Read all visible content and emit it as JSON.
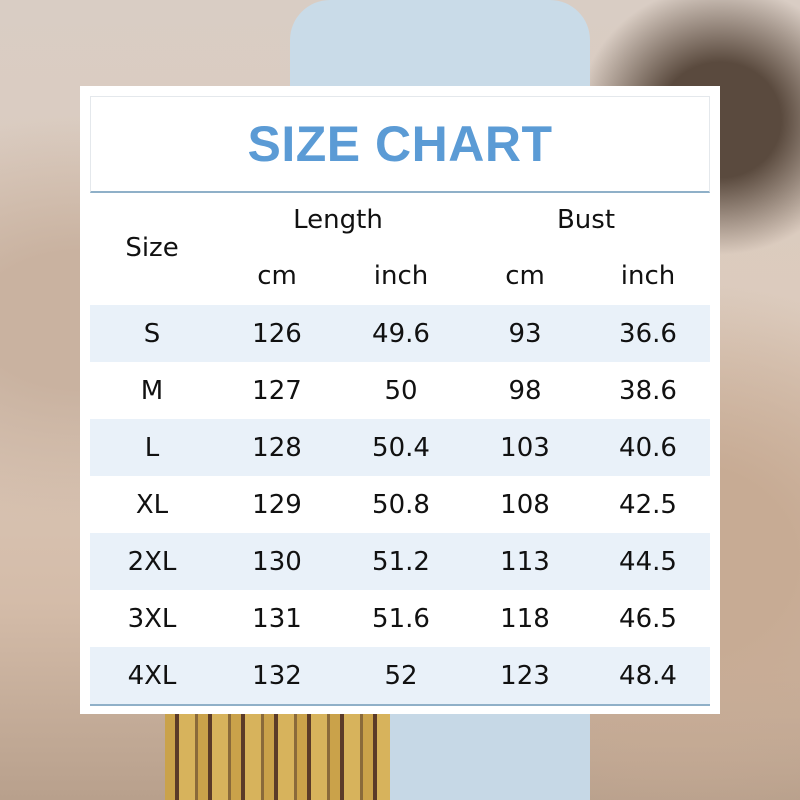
{
  "title": "SIZE CHART",
  "header": {
    "size": "Size",
    "length": "Length",
    "bust": "Bust",
    "units": [
      "cm",
      "inch",
      "cm",
      "inch"
    ]
  },
  "rows": [
    {
      "size": "S",
      "length_cm": "126",
      "length_in": "49.6",
      "bust_cm": "93",
      "bust_in": "36.6"
    },
    {
      "size": "M",
      "length_cm": "127",
      "length_in": "50",
      "bust_cm": "98",
      "bust_in": "38.6"
    },
    {
      "size": "L",
      "length_cm": "128",
      "length_in": "50.4",
      "bust_cm": "103",
      "bust_in": "40.6"
    },
    {
      "size": "XL",
      "length_cm": "129",
      "length_in": "50.8",
      "bust_cm": "108",
      "bust_in": "42.5"
    },
    {
      "size": "2XL",
      "length_cm": "130",
      "length_in": "51.2",
      "bust_cm": "113",
      "bust_in": "44.5"
    },
    {
      "size": "3XL",
      "length_cm": "131",
      "length_in": "51.6",
      "bust_cm": "118",
      "bust_in": "46.5"
    },
    {
      "size": "4XL",
      "length_cm": "132",
      "length_in": "52",
      "bust_cm": "123",
      "bust_in": "48.4"
    }
  ],
  "colors": {
    "title": "#5b9bd5",
    "stripe": "#e9f1f9",
    "rule": "#8fb0c8"
  }
}
